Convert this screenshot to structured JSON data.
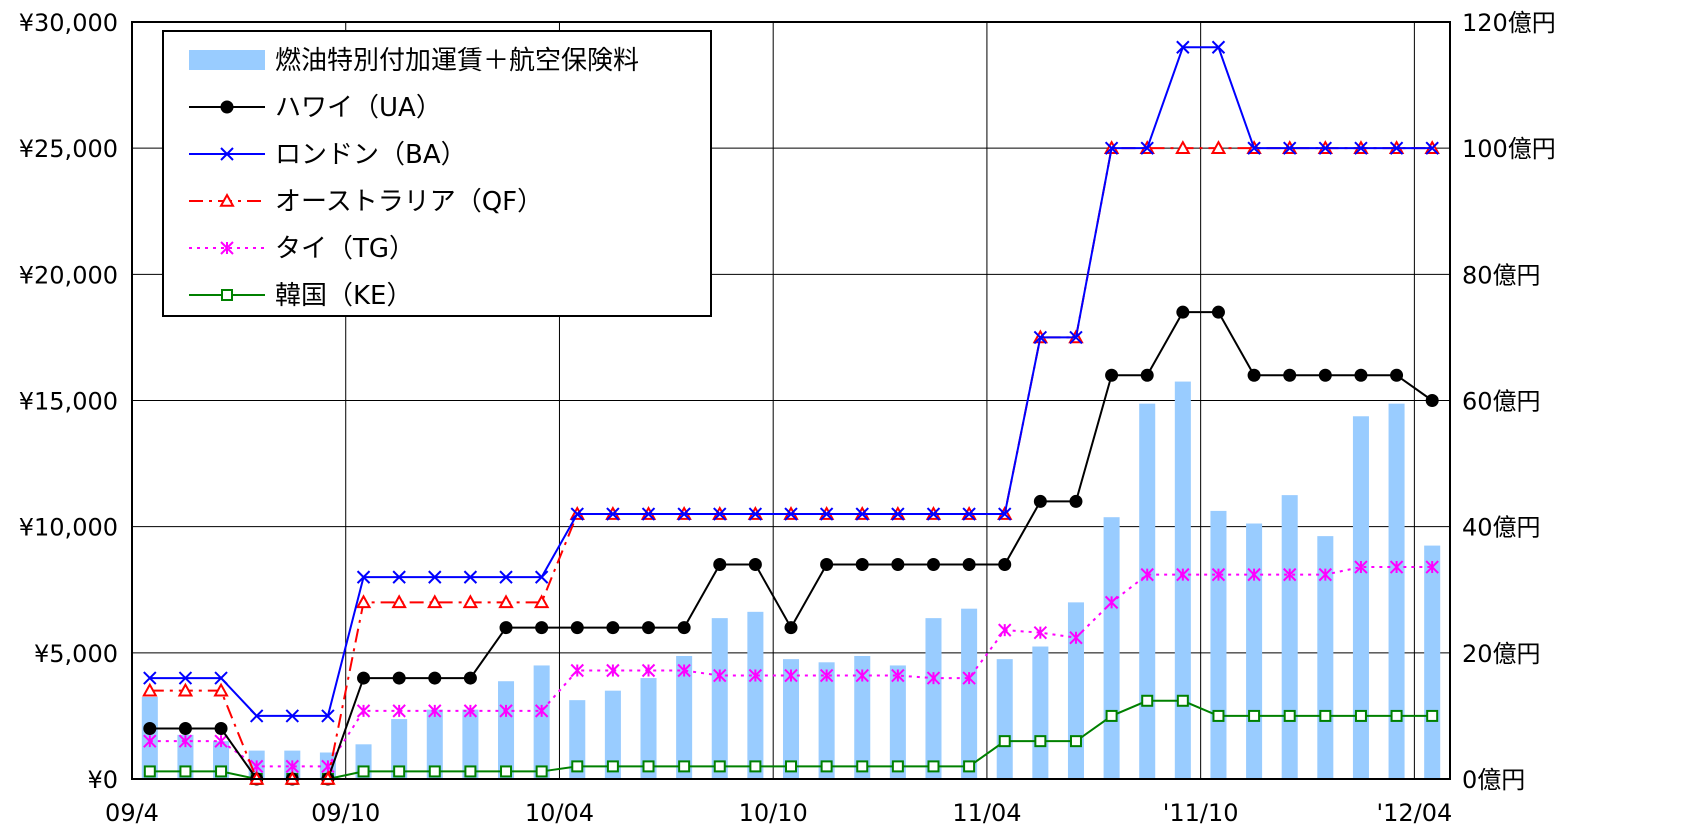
{
  "chart_data": {
    "type": "bar",
    "x": [
      "09/4",
      "09/5",
      "09/6",
      "09/7",
      "09/8",
      "09/9",
      "09/10",
      "09/11",
      "09/12",
      "10/01",
      "10/02",
      "10/03",
      "10/04",
      "10/05",
      "10/06",
      "10/07",
      "10/08",
      "10/09",
      "10/10",
      "10/11",
      "10/12",
      "11/01",
      "11/02",
      "11/03",
      "11/04",
      "11/05",
      "11/06",
      "11/07",
      "11/08",
      "11/09",
      "11/10",
      "11/11",
      "11/12",
      "12/01",
      "12/02",
      "12/03",
      "12/04"
    ],
    "x_tick_labels": [
      {
        "index": 0,
        "label": "09/4"
      },
      {
        "index": 6,
        "label": "09/10"
      },
      {
        "index": 12,
        "label": "10/04"
      },
      {
        "index": 18,
        "label": "10/10"
      },
      {
        "index": 24,
        "label": "11/04"
      },
      {
        "index": 30,
        "label": "'11/10"
      },
      {
        "index": 36,
        "label": "'12/04"
      }
    ],
    "y_left": {
      "min": 0,
      "max": 30000,
      "ticks": [
        0,
        5000,
        10000,
        15000,
        20000,
        25000,
        30000
      ],
      "tick_labels": [
        "¥0",
        "¥5,000",
        "¥10,000",
        "¥15,000",
        "¥20,000",
        "¥25,000",
        "¥30,000"
      ]
    },
    "y_right": {
      "min": 0,
      "max": 120,
      "ticks": [
        0,
        20,
        40,
        60,
        80,
        100,
        120
      ],
      "tick_labels": [
        "0億円",
        "20億円",
        "40億円",
        "60億円",
        "80億円",
        "100億円",
        "120億円"
      ]
    },
    "grid": true,
    "legend_position": "top-left",
    "bars": {
      "name": "燃油特別付加運賃＋航空保険料",
      "axis": "right",
      "color": "#99ccff",
      "values": [
        13,
        7,
        6,
        4.5,
        4.5,
        4.2,
        5.5,
        9.5,
        11,
        11,
        15.5,
        18,
        12.5,
        14,
        16,
        19.5,
        25.5,
        26.5,
        19,
        18.5,
        19.5,
        18,
        25.5,
        27,
        19,
        21,
        28,
        41.5,
        59.5,
        63,
        42.5,
        40.5,
        45,
        38.5,
        57.5,
        59.5,
        37
      ]
    },
    "series": [
      {
        "name": "ハワイ（UA）",
        "axis": "left",
        "color": "#000000",
        "marker": "circle",
        "dash": "solid",
        "values": [
          2000,
          2000,
          2000,
          0,
          0,
          0,
          4000,
          4000,
          4000,
          4000,
          6000,
          6000,
          6000,
          6000,
          6000,
          6000,
          8500,
          8500,
          6000,
          8500,
          8500,
          8500,
          8500,
          8500,
          8500,
          11000,
          11000,
          16000,
          16000,
          18500,
          18500,
          16000,
          16000,
          16000,
          16000,
          16000,
          15000
        ]
      },
      {
        "name": "ロンドン（BA）",
        "axis": "left",
        "color": "#0000ff",
        "marker": "x",
        "dash": "solid",
        "values": [
          4000,
          4000,
          4000,
          2500,
          2500,
          2500,
          8000,
          8000,
          8000,
          8000,
          8000,
          8000,
          10500,
          10500,
          10500,
          10500,
          10500,
          10500,
          10500,
          10500,
          10500,
          10500,
          10500,
          10500,
          10500,
          17500,
          17500,
          25000,
          25000,
          29000,
          29000,
          25000,
          25000,
          25000,
          25000,
          25000,
          25000
        ]
      },
      {
        "name": "オーストラリア（QF）",
        "axis": "left",
        "color": "#ff0000",
        "marker": "triangle",
        "dash": "dashdot",
        "values": [
          3500,
          3500,
          3500,
          0,
          0,
          0,
          7000,
          7000,
          7000,
          7000,
          7000,
          7000,
          10500,
          10500,
          10500,
          10500,
          10500,
          10500,
          10500,
          10500,
          10500,
          10500,
          10500,
          10500,
          10500,
          17500,
          17500,
          25000,
          25000,
          25000,
          25000,
          25000,
          25000,
          25000,
          25000,
          25000,
          25000
        ]
      },
      {
        "name": "タイ（TG）",
        "axis": "left",
        "color": "#ff00ff",
        "marker": "asterisk",
        "dash": "dotted",
        "values": [
          1500,
          1500,
          1500,
          500,
          500,
          500,
          2700,
          2700,
          2700,
          2700,
          2700,
          2700,
          4300,
          4300,
          4300,
          4300,
          4100,
          4100,
          4100,
          4100,
          4100,
          4100,
          4000,
          4000,
          5900,
          5800,
          5600,
          7000,
          8100,
          8100,
          8100,
          8100,
          8100,
          8100,
          8400,
          8400,
          8400
        ]
      },
      {
        "name": "韓国（KE）",
        "axis": "left",
        "color": "#008000",
        "marker": "square",
        "dash": "solid",
        "values": [
          300,
          300,
          300,
          0,
          0,
          0,
          300,
          300,
          300,
          300,
          300,
          300,
          500,
          500,
          500,
          500,
          500,
          500,
          500,
          500,
          500,
          500,
          500,
          500,
          1500,
          1500,
          1500,
          2500,
          3100,
          3100,
          2500,
          2500,
          2500,
          2500,
          2500,
          2500,
          2500
        ]
      }
    ]
  }
}
